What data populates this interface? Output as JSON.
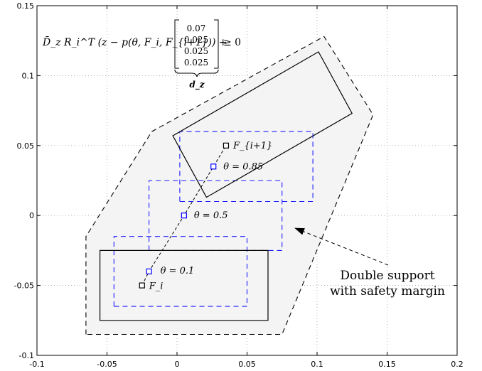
{
  "chart_data": {
    "type": "scatter",
    "xlim": [
      -0.1,
      0.2
    ],
    "ylim": [
      -0.1,
      0.15
    ],
    "x_ticks": [
      -0.1,
      -0.05,
      0,
      0.05,
      0.1,
      0.15,
      0.2
    ],
    "y_ticks": [
      -0.1,
      -0.05,
      0,
      0.05,
      0.1,
      0.15
    ],
    "x_tick_labels": [
      "-0.1",
      "-0.05",
      "0",
      "0.05",
      "0.1",
      "0.15",
      "0.2"
    ],
    "y_tick_labels": [
      "-0.1",
      "-0.05",
      "0",
      "0.05",
      "0.1",
      "0.15"
    ],
    "grid": true,
    "equation": {
      "lhs": "D̄_z R_i^T (z − p(θ, F_i, F_{i+1})) +",
      "vector": [
        "0.07",
        "0.025",
        "0.025",
        "0.025"
      ],
      "rhs": "≥ 0",
      "underbrace_label": "d_z"
    },
    "safety_region": [
      [
        -0.065,
        -0.085
      ],
      [
        -0.065,
        -0.015
      ],
      [
        -0.018,
        0.06
      ],
      [
        0.105,
        0.128
      ],
      [
        0.14,
        0.072
      ],
      [
        0.075,
        -0.085
      ]
    ],
    "safety_region_color": "#f4f4f4",
    "support_rects": [
      {
        "name": "foot_i",
        "points": [
          [
            -0.055,
            -0.075
          ],
          [
            -0.055,
            -0.025
          ],
          [
            0.065,
            -0.025
          ],
          [
            0.065,
            -0.075
          ]
        ]
      },
      {
        "name": "foot_i+1",
        "points": [
          [
            -0.003,
            0.057
          ],
          [
            0.021,
            0.013
          ],
          [
            0.125,
            0.073
          ],
          [
            0.101,
            0.117
          ]
        ]
      }
    ],
    "com_rects": [
      {
        "theta": "0.1",
        "points": [
          [
            -0.045,
            -0.065
          ],
          [
            -0.045,
            -0.015
          ],
          [
            0.05,
            -0.015
          ],
          [
            0.05,
            -0.065
          ]
        ]
      },
      {
        "theta": "0.5",
        "points": [
          [
            -0.02,
            -0.025
          ],
          [
            -0.02,
            0.025
          ],
          [
            0.075,
            0.025
          ],
          [
            0.075,
            -0.025
          ]
        ]
      },
      {
        "theta": "0.85",
        "points": [
          [
            0.002,
            0.01
          ],
          [
            0.002,
            0.06
          ],
          [
            0.097,
            0.06
          ],
          [
            0.097,
            0.01
          ]
        ]
      }
    ],
    "path": [
      [
        -0.025,
        -0.05
      ],
      [
        -0.02,
        -0.04
      ],
      [
        0.005,
        0.0
      ],
      [
        0.026,
        0.035
      ],
      [
        0.035,
        0.05
      ]
    ],
    "points": [
      {
        "x": -0.025,
        "y": -0.05,
        "label": "F_i",
        "color": "#000000"
      },
      {
        "x": -0.02,
        "y": -0.04,
        "label": "θ = 0.1",
        "color": "#0000ff"
      },
      {
        "x": 0.005,
        "y": 0.0,
        "label": "θ = 0.5",
        "color": "#0000ff"
      },
      {
        "x": 0.026,
        "y": 0.035,
        "label": "θ = 0.85",
        "color": "#0000ff"
      },
      {
        "x": 0.035,
        "y": 0.05,
        "label": "F_{i+1}",
        "color": "#000000"
      }
    ],
    "annotation": {
      "text": [
        "Double support",
        "with safety margin"
      ],
      "arrow_tip": [
        0.083,
        -0.01
      ]
    }
  }
}
